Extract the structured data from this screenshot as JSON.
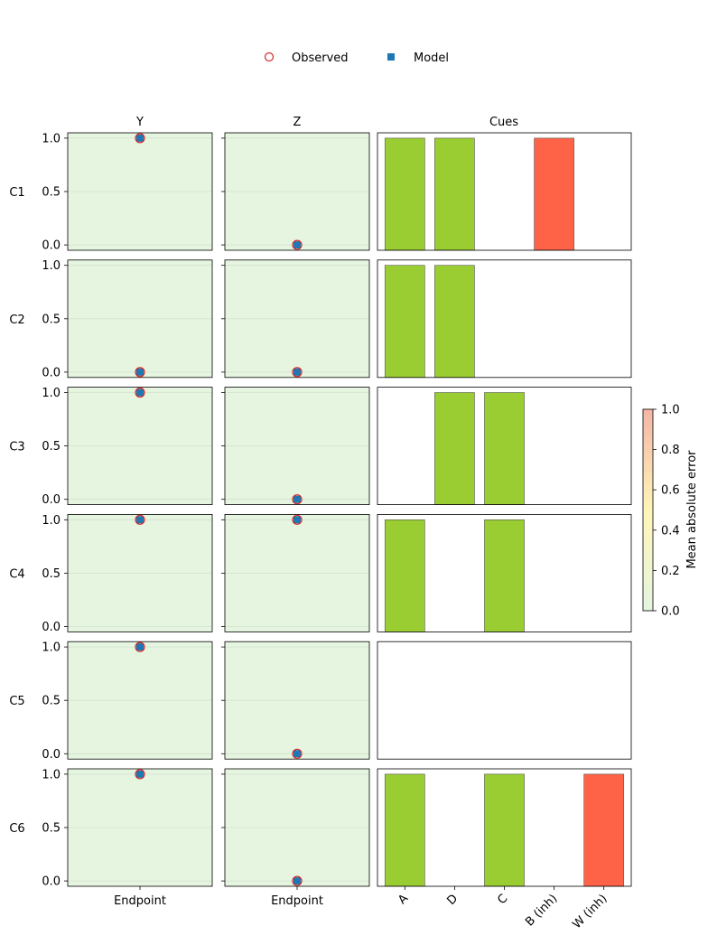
{
  "legend": {
    "placement": "top-center",
    "items": [
      {
        "label": "Observed",
        "marker": "hollow-circle",
        "color": "#d62728"
      },
      {
        "label": "Model",
        "marker": "filled-square",
        "color": "#1f77b4"
      }
    ]
  },
  "columns": {
    "y_title": "Y",
    "z_title": "Z",
    "cues_title": "Cues"
  },
  "colorbar": {
    "label": "Mean absolute error",
    "range": [
      0,
      1
    ],
    "ticks": [
      "0.0",
      "0.2",
      "0.4",
      "0.6",
      "0.8",
      "1.0"
    ],
    "low_color": "#e5f5e0",
    "mid_color": "#fff5b8",
    "high_color": "#f4b5a6"
  },
  "colors": {
    "excitatory_cue": "#9acd32",
    "inhibitory_cue": "#ff6347",
    "observed_edge": "#d62728",
    "model_fill": "#1f77b4",
    "panel_bg": "#e5f5e0"
  },
  "chart_data": {
    "type": "scatter",
    "x_label": "Endpoint",
    "y_ticks": [
      "0.0",
      "0.5",
      "1.0"
    ],
    "ylim": [
      -0.05,
      1.05
    ],
    "cue_categories": [
      "A",
      "D",
      "C",
      "B (inh)",
      "W (inh)"
    ],
    "cue_types": [
      "excitatory",
      "excitatory",
      "excitatory",
      "inhibitory",
      "inhibitory"
    ],
    "conditions": [
      {
        "name": "C1",
        "Y": {
          "observed": 1.0,
          "model": 1.0,
          "mae": 0.0
        },
        "Z": {
          "observed": 0.0,
          "model": 0.0,
          "mae": 0.0
        },
        "cues": [
          1,
          1,
          0,
          1,
          0
        ]
      },
      {
        "name": "C2",
        "Y": {
          "observed": 0.0,
          "model": 0.0,
          "mae": 0.0
        },
        "Z": {
          "observed": 0.0,
          "model": 0.0,
          "mae": 0.0
        },
        "cues": [
          1,
          1,
          0,
          0,
          0
        ]
      },
      {
        "name": "C3",
        "Y": {
          "observed": 1.0,
          "model": 1.0,
          "mae": 0.0
        },
        "Z": {
          "observed": 0.0,
          "model": 0.0,
          "mae": 0.0
        },
        "cues": [
          0,
          1,
          1,
          0,
          0
        ]
      },
      {
        "name": "C4",
        "Y": {
          "observed": 1.0,
          "model": 1.0,
          "mae": 0.0
        },
        "Z": {
          "observed": 1.0,
          "model": 1.0,
          "mae": 0.0
        },
        "cues": [
          1,
          0,
          1,
          0,
          0
        ]
      },
      {
        "name": "C5",
        "Y": {
          "observed": 1.0,
          "model": 1.0,
          "mae": 0.0
        },
        "Z": {
          "observed": 0.0,
          "model": 0.0,
          "mae": 0.0
        },
        "cues": [
          0,
          0,
          0,
          0,
          0
        ]
      },
      {
        "name": "C6",
        "Y": {
          "observed": 1.0,
          "model": 1.0,
          "mae": 0.0
        },
        "Z": {
          "observed": 0.0,
          "model": 0.0,
          "mae": 0.0
        },
        "cues": [
          1,
          0,
          1,
          0,
          1
        ]
      }
    ]
  }
}
